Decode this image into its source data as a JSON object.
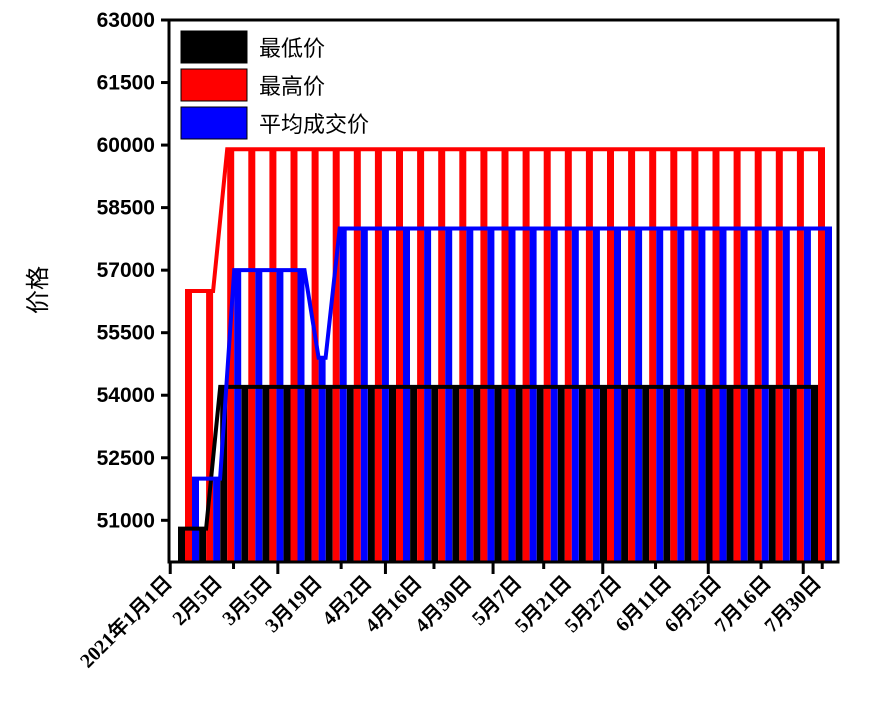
{
  "chart_data": {
    "type": "bar",
    "title": "",
    "xlabel": "",
    "ylabel": "价格",
    "ylim": [
      50000,
      63000
    ],
    "yticks": [
      51000,
      52500,
      54000,
      55500,
      57000,
      58500,
      60000,
      61500,
      63000
    ],
    "n_points": 31,
    "xtick_labels": [
      {
        "label": "2021年1月1日",
        "index": -0.7
      },
      {
        "label": "2月5日",
        "index": 2.3
      },
      {
        "label": "3月5日",
        "index": 4.4
      },
      {
        "label": "3月19日",
        "index": 7.4
      },
      {
        "label": "4月2日",
        "index": 9.5
      },
      {
        "label": "4月16日",
        "index": 11.8
      },
      {
        "label": "4月30日",
        "index": 14.6
      },
      {
        "label": "5月7日",
        "index": 17
      },
      {
        "label": "5月21日",
        "index": 19.8
      },
      {
        "label": "5月27日",
        "index": 22.3
      },
      {
        "label": "6月11日",
        "index": 24.8
      },
      {
        "label": "6月25日",
        "index": 27.3
      },
      {
        "label": "7月16日",
        "index": 29.3
      },
      {
        "label": "7月30日",
        "index": 30.2
      }
    ],
    "series": [
      {
        "name": "最低价",
        "color": "#000000",
        "values": [
          50800,
          50800,
          54200,
          54200,
          54200,
          54200,
          54200,
          54200,
          54200,
          54200,
          54200,
          54200,
          54200,
          54200,
          54200,
          54200,
          54200,
          54200,
          54200,
          54200,
          54200,
          54200,
          54200,
          54200,
          54200,
          54200,
          54200,
          54200,
          54200,
          54200,
          54200
        ]
      },
      {
        "name": "最高价",
        "color": "#ff0000",
        "values": [
          56500,
          56500,
          59900,
          59900,
          59900,
          59900,
          59900,
          59900,
          59900,
          59900,
          59900,
          59900,
          59900,
          59900,
          59900,
          59900,
          59900,
          59900,
          59900,
          59900,
          59900,
          59900,
          59900,
          59900,
          59900,
          59900,
          59900,
          59900,
          59900,
          59900,
          59900
        ]
      },
      {
        "name": "平均成交价",
        "color": "#0000ff",
        "values": [
          52000,
          52000,
          57000,
          57000,
          57000,
          57000,
          54900,
          58000,
          58000,
          58000,
          58000,
          58000,
          58000,
          58000,
          58000,
          58000,
          58000,
          58000,
          58000,
          58000,
          58000,
          58000,
          58000,
          58000,
          58000,
          58000,
          58000,
          58000,
          58000,
          58000,
          58000
        ]
      }
    ],
    "legend_position": "top-left",
    "grid": false
  }
}
